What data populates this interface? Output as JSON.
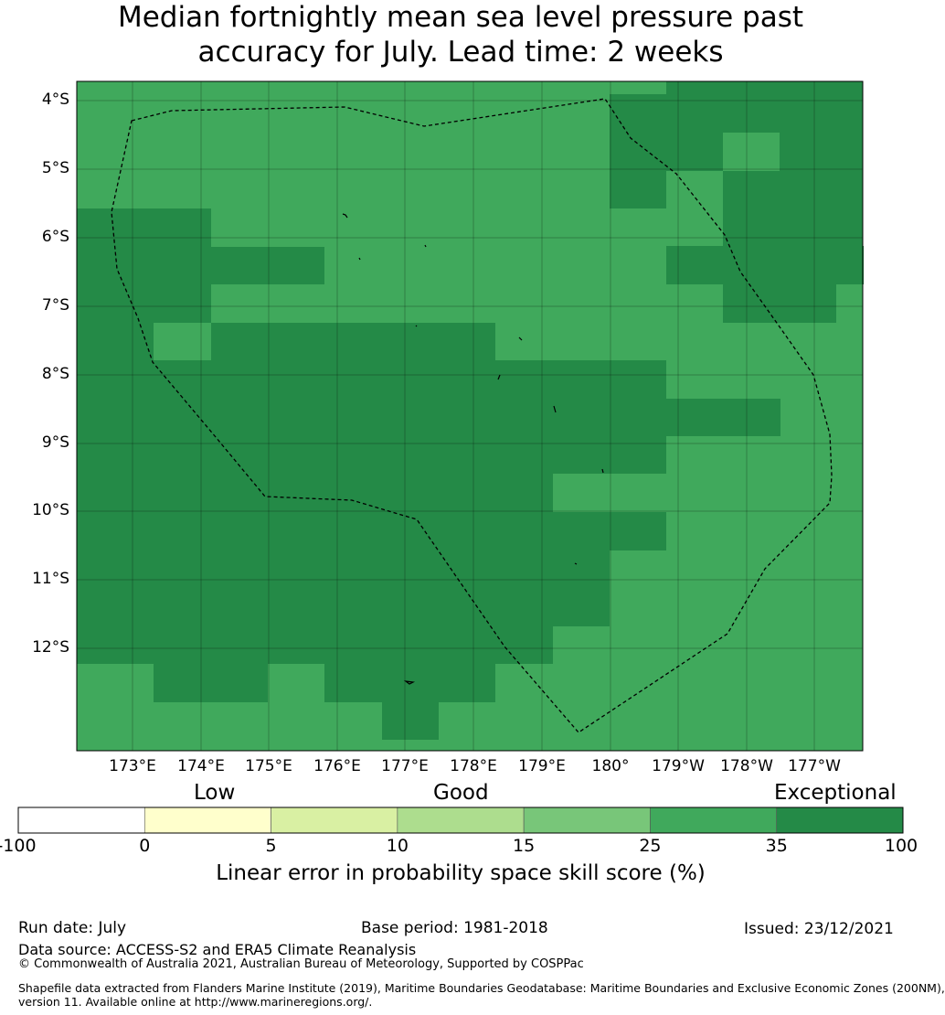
{
  "title_line1": "Median fortnightly mean sea level pressure past",
  "title_line2": "accuracy for July. Lead time: 2 weeks",
  "map": {
    "lat_labels": [
      "4°S",
      "5°S",
      "6°S",
      "7°S",
      "8°S",
      "9°S",
      "10°S",
      "11°S",
      "12°S"
    ],
    "lon_labels": [
      "173°E",
      "174°E",
      "175°E",
      "176°E",
      "177°E",
      "178°E",
      "179°E",
      "180°",
      "179°W",
      "178°W",
      "177°W"
    ],
    "colors": {
      "exceptional": "#248a47",
      "high": "#40a95c"
    },
    "grid": [
      "MMMMMMMMMMMMMMMMMMMMMMMMMMMMMMMMMMMMMMMMMMMMMM",
      "MMMMMMMMMMMMMMMMMMMMMMMMMMMMMMMMMMMMMMMMMMMMMM",
      "MMMMMMMMMMMMMMMMMMMMMMMMMMMMMMMMMMMMMMMMMMMMMM",
      "MMMMMMMMMMMMMMMMMMMMMMMMMMMMMMMMMMMMMMMMMMMMMM"
    ]
  },
  "colorbar": {
    "headers": {
      "low": "Low",
      "good": "Good",
      "exceptional": "Exceptional"
    },
    "ticks": [
      "-100",
      "0",
      "5",
      "10",
      "15",
      "25",
      "35",
      "100"
    ],
    "colors": [
      "#ffffff",
      "#ffffcc",
      "#d9f0a3",
      "#addd8e",
      "#78c679",
      "#40a95c",
      "#248a47"
    ],
    "label": "Linear error in probability space skill score (%)"
  },
  "footer": {
    "run_date": "Run date: July",
    "base_period": "Base period: 1981-2018",
    "issued": "Issued: 23/12/2021",
    "data_source": "Data source: ACCESS-S2 and ERA5 Climate Reanalysis",
    "copyright": "© Commonwealth of Australia 2021, Australian Bureau of Meteorology, Supported by COSPPac",
    "shapefile_line1": "Shapefile data extracted from Flanders Marine Institute (2019), Maritime Boundaries Geodatabase: Maritime Boundaries and Exclusive Economic Zones (200NM),",
    "shapefile_line2": "version 11. Available online at http://www.marineregions.org/."
  }
}
